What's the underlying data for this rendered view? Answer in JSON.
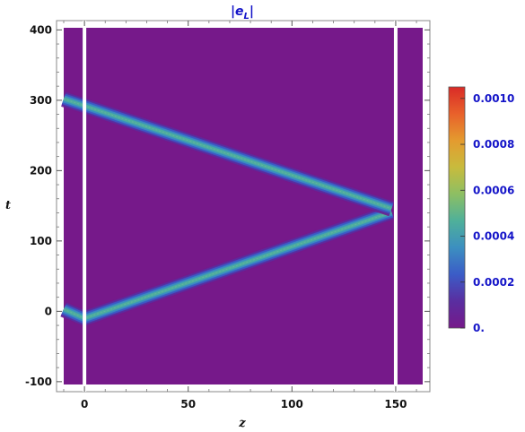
{
  "chart_data": {
    "type": "heatmap",
    "title": "|e_L|",
    "title_main": "|e",
    "title_sub": "L",
    "title_end": "|",
    "xlabel": "z",
    "ylabel": "t",
    "xlim": [
      -10,
      163
    ],
    "ylim": [
      -104,
      403
    ],
    "x_ticks": [
      0,
      50,
      100,
      150
    ],
    "x_tick_labels": [
      "0",
      "50",
      "100",
      "150"
    ],
    "y_ticks": [
      -100,
      0,
      100,
      200,
      300,
      400
    ],
    "y_tick_labels": [
      "-100",
      "0",
      "100",
      "200",
      "300",
      "400"
    ],
    "fill_color": "#76198a",
    "boundary_lines": {
      "z": [
        0,
        150
      ],
      "color": "#ffffff"
    },
    "pulses": [
      {
        "name": "forward",
        "points": [
          [
            -10,
            3
          ],
          [
            0,
            -10
          ],
          [
            148,
            141
          ]
        ],
        "max_value": 0.00045
      },
      {
        "name": "backward",
        "points": [
          [
            -10,
            302
          ],
          [
            0,
            292
          ],
          [
            148,
            146
          ]
        ],
        "max_value": 0.00045
      }
    ],
    "colorbar": {
      "min": 0,
      "max": 0.00105,
      "ticks": [
        0,
        0.0002,
        0.0004,
        0.0006,
        0.0008,
        0.001
      ],
      "tick_labels": [
        "0.",
        "0.0002",
        "0.0004",
        "0.0006",
        "0.0008",
        "0.0010"
      ],
      "colors": [
        "#76198a",
        "#5a2ea0",
        "#3b5cc7",
        "#3c8fc0",
        "#4fb09a",
        "#8dbf63",
        "#c8bb3d",
        "#e49b2f",
        "#e8612b",
        "#d92b27"
      ]
    }
  }
}
